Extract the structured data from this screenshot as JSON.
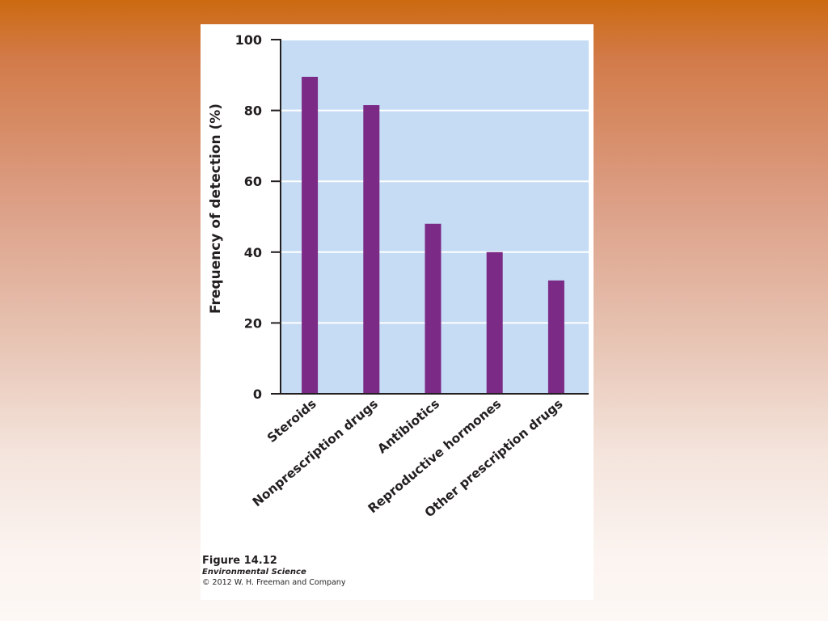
{
  "chart_data": {
    "type": "bar",
    "categories": [
      "Steroids",
      "Nonprescription drugs",
      "Antibiotics",
      "Reproductive hormones",
      "Other prescription drugs"
    ],
    "values": [
      89.5,
      81.5,
      48,
      40,
      32
    ],
    "title": "",
    "xlabel": "",
    "ylabel": "Frequency of detection (%)",
    "ylim": [
      0,
      100
    ],
    "yticks": [
      0,
      20,
      40,
      60,
      80,
      100
    ],
    "grid": true,
    "legend": "none",
    "colors": {
      "bar": "#7b2a86",
      "plot_bg": "#c5dcf4",
      "grid": "#ffffff"
    }
  },
  "caption": {
    "figure": "Figure 14.12",
    "book": "Environmental Science",
    "copyright": "© 2012 W. H. Freeman and Company"
  }
}
